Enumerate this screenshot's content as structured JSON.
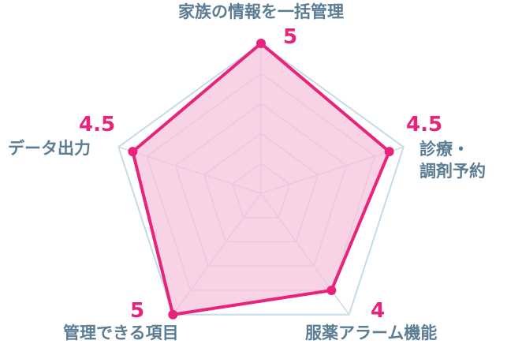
{
  "chart_data": {
    "type": "radar",
    "max": 5,
    "levels": 5,
    "categories": [
      [
        "家族の情報を一括管理"
      ],
      [
        "診療・",
        "調剤予約"
      ],
      [
        "服薬アラーム機能"
      ],
      [
        "管理できる項目"
      ],
      [
        "データ出力"
      ]
    ],
    "values": [
      5,
      4.5,
      4,
      5,
      4.5
    ],
    "value_labels": [
      "5",
      "4.5",
      "4",
      "5",
      "4.5"
    ],
    "grid": true
  },
  "colors": {
    "series_stroke": "#e8237b",
    "series_fill": "#f6c3dc",
    "grid": "#d3d8de",
    "outer_grid": "#c6dbe8",
    "axis_label": "#5a7d93",
    "value_label": "#e8237b"
  }
}
